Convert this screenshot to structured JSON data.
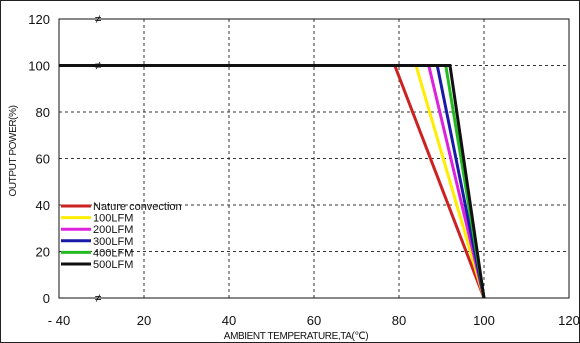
{
  "chart_data": {
    "type": "line",
    "xlabel": "AMBIENT TEMPERATURE,TA(℃)",
    "ylabel": "OUTPUT POWER(%)",
    "xlim": [
      0,
      120
    ],
    "ylim": [
      0,
      120
    ],
    "x_ticks": [
      {
        "value": 0,
        "label": "- 40"
      },
      {
        "value": 20,
        "label": "20"
      },
      {
        "value": 40,
        "label": "40"
      },
      {
        "value": 60,
        "label": "60"
      },
      {
        "value": 80,
        "label": "80"
      },
      {
        "value": 100,
        "label": "100"
      },
      {
        "value": 120,
        "label": "120"
      }
    ],
    "y_ticks": [
      {
        "value": 0,
        "label": "0"
      },
      {
        "value": 20,
        "label": "20"
      },
      {
        "value": 40,
        "label": "40"
      },
      {
        "value": 60,
        "label": "60"
      },
      {
        "value": 80,
        "label": "80"
      },
      {
        "value": 100,
        "label": "100"
      },
      {
        "value": 120,
        "label": "120"
      }
    ],
    "axis_break_marker": "≠",
    "grid": true,
    "legend_position": "bottom-left",
    "series": [
      {
        "name": "Nature convection",
        "color": "#cc2222",
        "points": [
          [
            0,
            100
          ],
          [
            79,
            100
          ],
          [
            100,
            0
          ]
        ]
      },
      {
        "name": "100LFM",
        "color": "#ffee00",
        "points": [
          [
            0,
            100
          ],
          [
            84,
            100
          ],
          [
            100,
            0
          ]
        ]
      },
      {
        "name": "200LFM",
        "color": "#dd22dd",
        "points": [
          [
            0,
            100
          ],
          [
            87,
            100
          ],
          [
            100,
            0
          ]
        ]
      },
      {
        "name": "300LFM",
        "color": "#1a1aa8",
        "points": [
          [
            0,
            100
          ],
          [
            89,
            100
          ],
          [
            100,
            0
          ]
        ]
      },
      {
        "name": "400LFM",
        "color": "#22bb22",
        "points": [
          [
            0,
            100
          ],
          [
            91,
            100
          ],
          [
            100,
            0
          ]
        ]
      },
      {
        "name": "500LFM",
        "color": "#111111",
        "points": [
          [
            0,
            100
          ],
          [
            92,
            100
          ],
          [
            100,
            0
          ]
        ]
      }
    ]
  }
}
